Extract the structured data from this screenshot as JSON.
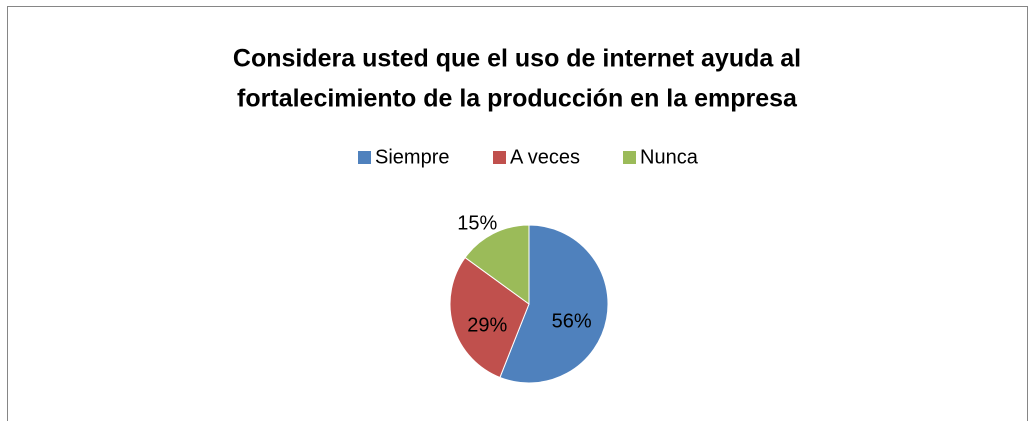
{
  "chart_data": {
    "type": "pie",
    "title": [
      "Considera usted que el uso de internet ayuda al",
      "fortalecimiento de la producción en la empresa"
    ],
    "categories": [
      "Siempre",
      "A veces",
      "Nunca"
    ],
    "values": [
      56,
      29,
      15
    ],
    "value_labels": [
      "56%",
      "29%",
      "15%"
    ],
    "colors": [
      "#4f81bd",
      "#c0504d",
      "#9bbb59"
    ],
    "legend": "top"
  }
}
